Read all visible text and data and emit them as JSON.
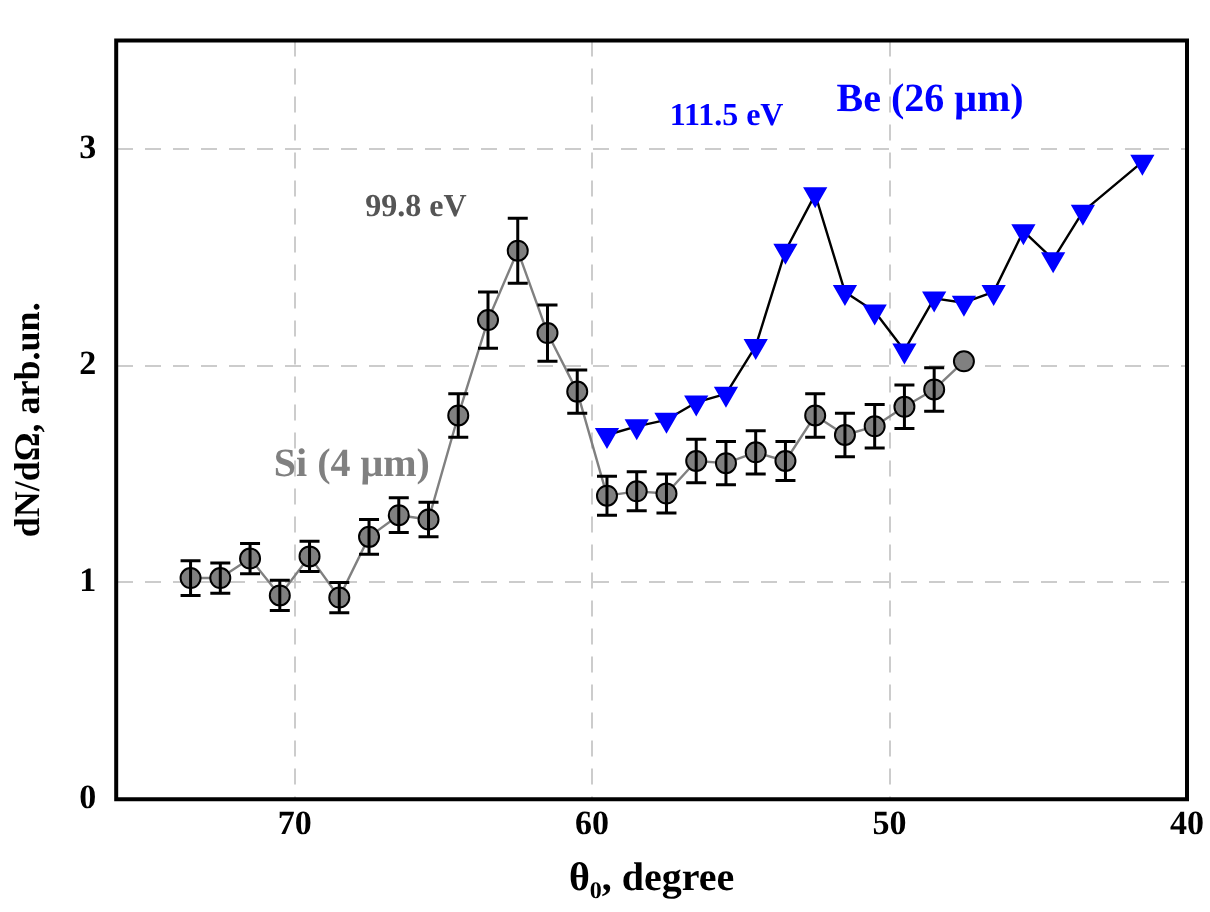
{
  "chart_data": {
    "type": "line",
    "xlabel": "θ₀, degree",
    "ylabel": "dN/dΩ, arb.un.",
    "xlim": [
      76,
      40
    ],
    "xticks": [
      70,
      60,
      50,
      40
    ],
    "ylim": [
      0,
      3.5
    ],
    "yticks": [
      0,
      1,
      2,
      3
    ],
    "grid": true,
    "legend": false,
    "series": [
      {
        "name": "Si (4 μm)",
        "color": "#808080",
        "marker": "circle",
        "x": [
          73.5,
          72.5,
          71.5,
          70.5,
          69.5,
          68.5,
          67.5,
          66.5,
          65.5,
          64.5,
          63.5,
          62.5,
          61.5,
          60.5,
          59.5,
          58.5,
          57.5,
          56.5,
          55.5,
          54.5,
          53.5,
          52.5,
          51.5,
          50.5,
          49.5,
          48.5,
          47.5
        ],
        "values": [
          1.02,
          1.02,
          1.11,
          0.94,
          1.12,
          0.93,
          1.21,
          1.31,
          1.29,
          1.77,
          2.21,
          2.53,
          2.15,
          1.88,
          1.4,
          1.42,
          1.41,
          1.56,
          1.55,
          1.6,
          1.56,
          1.77,
          1.68,
          1.72,
          1.81,
          1.89,
          2.02
        ],
        "errors": [
          0.08,
          0.07,
          0.07,
          0.07,
          0.07,
          0.07,
          0.08,
          0.08,
          0.08,
          0.1,
          0.13,
          0.15,
          0.13,
          0.1,
          0.09,
          0.09,
          0.09,
          0.1,
          0.1,
          0.1,
          0.09,
          0.1,
          0.1,
          0.1,
          0.1,
          0.1,
          null
        ]
      },
      {
        "name": "Be (26 μm)",
        "color": "#0000ff",
        "marker": "triangle",
        "x": [
          59.5,
          58.5,
          57.5,
          56.5,
          55.5,
          54.5,
          53.5,
          52.5,
          51.5,
          50.5,
          49.5,
          48.5,
          47.5,
          46.5,
          45.5,
          44.5,
          43.5,
          41.5
        ],
        "values": [
          1.68,
          1.72,
          1.75,
          1.83,
          1.87,
          2.09,
          2.53,
          2.79,
          2.34,
          2.25,
          2.07,
          2.31,
          2.29,
          2.34,
          2.62,
          2.49,
          2.71,
          2.94
        ]
      }
    ],
    "annotations": [
      "99.8 eV",
      "111.5 eV"
    ]
  }
}
